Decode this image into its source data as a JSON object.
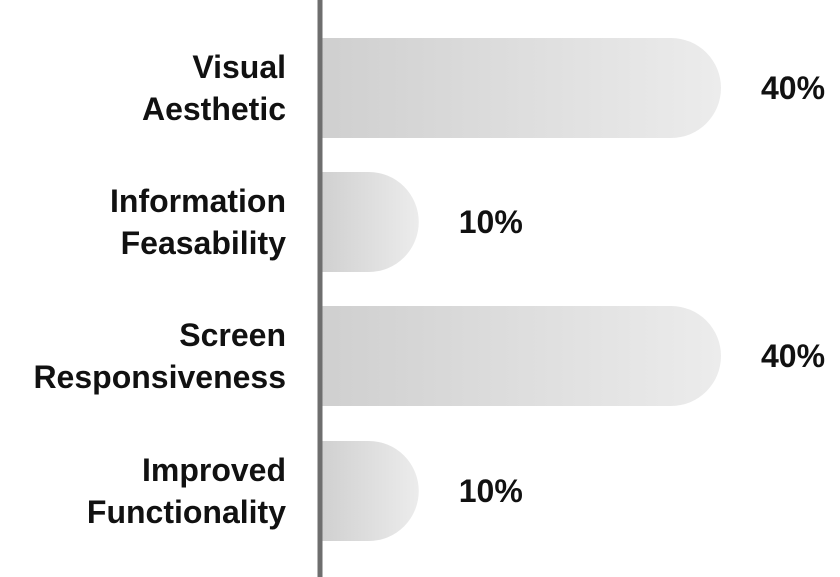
{
  "chart_data": {
    "type": "bar",
    "orientation": "horizontal",
    "categories": [
      [
        "Visual",
        "Aesthetic"
      ],
      [
        "Information",
        "Feasability"
      ],
      [
        "Screen",
        "Responsiveness"
      ],
      [
        "Improved",
        "Functionality"
      ]
    ],
    "values": [
      40,
      10,
      40,
      10
    ],
    "data_labels": [
      "40%",
      "10%",
      "40%",
      "10%"
    ],
    "xlim": [
      0,
      40
    ],
    "grid": false,
    "legend": "none",
    "colors": {
      "bar_gradient_start": "#cfcfcf",
      "bar_gradient_end": "#ececec",
      "axis": "#6e6e6e",
      "text": "#111111"
    }
  }
}
